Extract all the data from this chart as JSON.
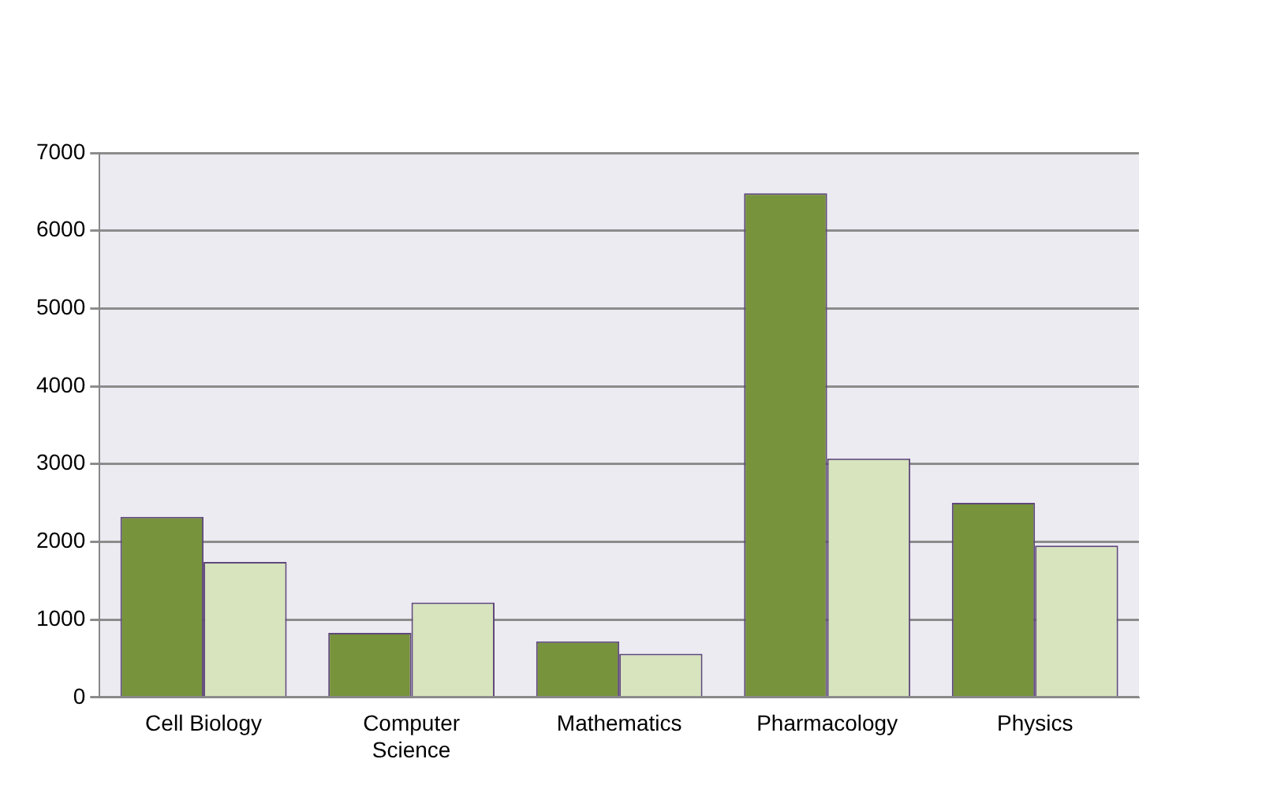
{
  "chart_data": {
    "type": "bar",
    "categories": [
      "Cell Biology",
      "Computer Science",
      "Mathematics",
      "Pharmacology",
      "Physics"
    ],
    "series": [
      {
        "color": "#77933c",
        "values": [
          2320,
          830,
          720,
          6480,
          2500
        ]
      },
      {
        "color": "#d7e4bd",
        "values": [
          1740,
          1220,
          560,
          3070,
          1950
        ]
      }
    ],
    "ylim": [
      0,
      7000
    ],
    "yticks": [
      0,
      1000,
      2000,
      3000,
      4000,
      5000,
      6000,
      7000
    ],
    "grid": "y"
  }
}
